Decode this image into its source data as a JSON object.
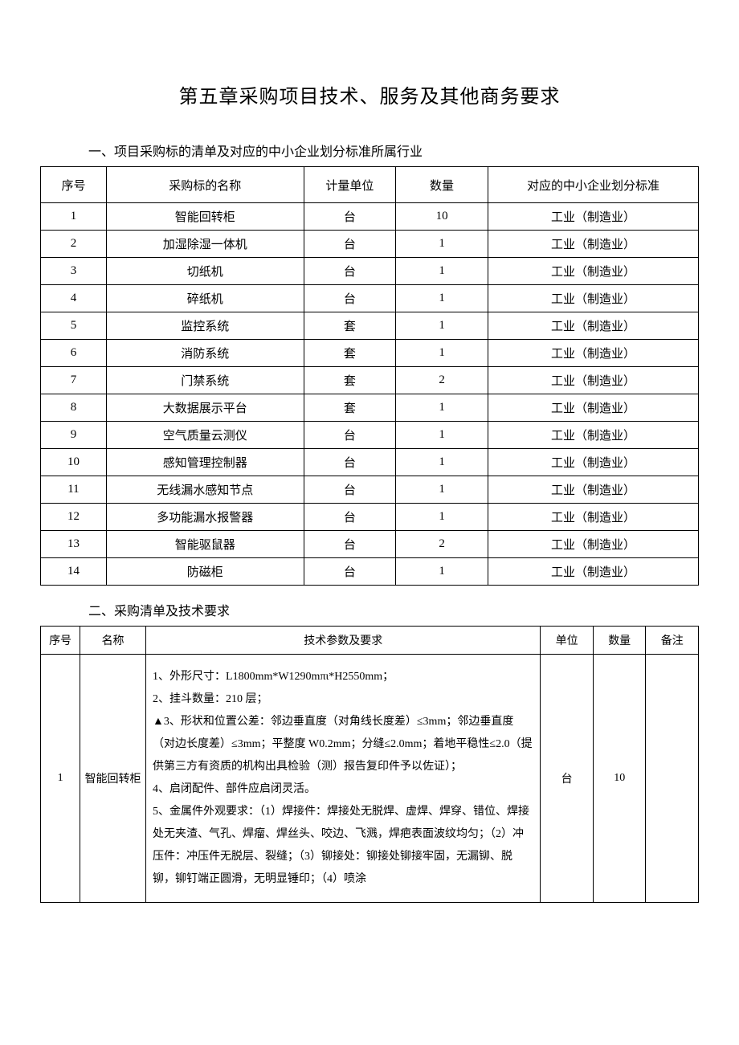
{
  "title": "第五章采购项目技术、服务及其他商务要求",
  "section1": {
    "heading": "一、项目采购标的清单及对应的中小企业划分标准所属行业",
    "columns": [
      "序号",
      "采购标的名称",
      "计量单位",
      "数量",
      "对应的中小企业划分标准"
    ],
    "col_widths": [
      "10%",
      "30%",
      "14%",
      "14%",
      "32%"
    ],
    "rows": [
      {
        "no": "1",
        "name": "智能回转柜",
        "unit": "台",
        "qty": "10",
        "std": "工业（制造业）"
      },
      {
        "no": "2",
        "name": "加湿除湿一体机",
        "unit": "台",
        "qty": "1",
        "std": "工业（制造业）"
      },
      {
        "no": "3",
        "name": "切纸机",
        "unit": "台",
        "qty": "1",
        "std": "工业（制造业）"
      },
      {
        "no": "4",
        "name": "碎纸机",
        "unit": "台",
        "qty": "1",
        "std": "工业（制造业）"
      },
      {
        "no": "5",
        "name": "监控系统",
        "unit": "套",
        "qty": "1",
        "std": "工业（制造业）"
      },
      {
        "no": "6",
        "name": "消防系统",
        "unit": "套",
        "qty": "1",
        "std": "工业（制造业）"
      },
      {
        "no": "7",
        "name": "门禁系统",
        "unit": "套",
        "qty": "2",
        "std": "工业（制造业）"
      },
      {
        "no": "8",
        "name": "大数据展示平台",
        "unit": "套",
        "qty": "1",
        "std": "工业（制造业）"
      },
      {
        "no": "9",
        "name": "空气质量云测仪",
        "unit": "台",
        "qty": "1",
        "std": "工业（制造业）"
      },
      {
        "no": "10",
        "name": "感知管理控制器",
        "unit": "台",
        "qty": "1",
        "std": "工业（制造业）"
      },
      {
        "no": "11",
        "name": "无线漏水感知节点",
        "unit": "台",
        "qty": "1",
        "std": "工业（制造业）"
      },
      {
        "no": "12",
        "name": "多功能漏水报警器",
        "unit": "台",
        "qty": "1",
        "std": "工业（制造业）"
      },
      {
        "no": "13",
        "name": "智能驱鼠器",
        "unit": "台",
        "qty": "2",
        "std": "工业（制造业）"
      },
      {
        "no": "14",
        "name": "防磁柜",
        "unit": "台",
        "qty": "1",
        "std": "工业（制造业）"
      }
    ]
  },
  "section2": {
    "heading": "二、采购清单及技术要求",
    "columns": [
      "序号",
      "名称",
      "技术参数及要求",
      "单位",
      "数量",
      "备注"
    ],
    "col_widths": [
      "6%",
      "10%",
      "60%",
      "8%",
      "8%",
      "8%"
    ],
    "rows": [
      {
        "no": "1",
        "name": "智能回转柜",
        "spec": "1、外形尺寸：L1800mm*W1290mπι*H2550mm；\n2、挂斗数量：210 层；\n▲3、形状和位置公差：邻边垂直度（对角线长度差）≤3mm；邻边垂直度（对边长度差）≤3mm；平整度 W0.2mm；分缝≤2.0mm；着地平稳性≤2.0（提供第三方有资质的机构出具检验（测）报告复印件予以佐证）；\n4、启闭配件、部件应启闭灵活。\n5、金属件外观要求：（1）焊接件：焊接处无脱焊、虚焊、焊穿、错位、焊接处无夹渣、气孔、焊瘤、焊丝头、咬边、飞溅，焊疤表面波纹均匀；（2）冲压件：冲压件无脱层、裂缝；（3）铆接处：铆接处铆接牢固，无漏铆、脱铆，铆钉端正圆滑，无明显锤印；（4）喷涂",
        "unit": "台",
        "qty": "10",
        "remark": ""
      }
    ]
  }
}
